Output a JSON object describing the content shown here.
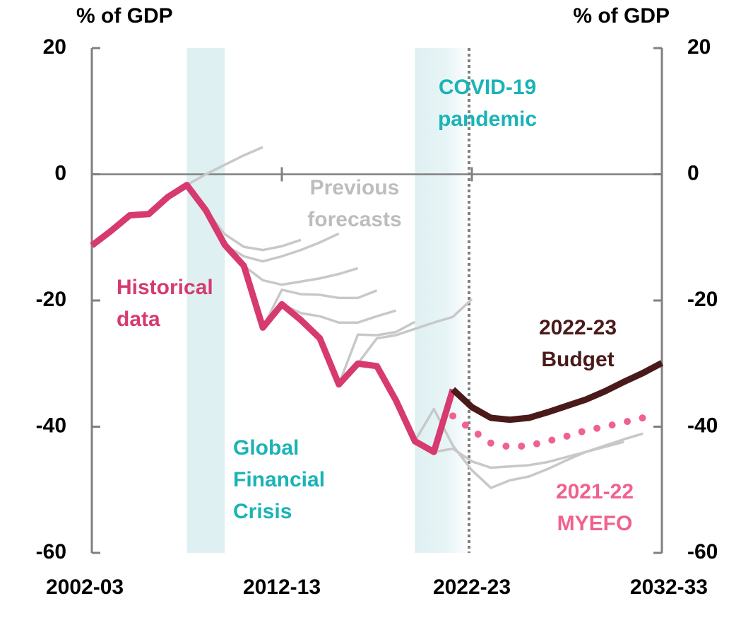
{
  "chart_data": {
    "type": "line",
    "y_label": "% of GDP",
    "y2_label": "% of GDP",
    "categories": [
      "2002-03",
      null,
      null,
      null,
      null,
      null,
      null,
      null,
      null,
      null,
      "2012-13",
      null,
      null,
      null,
      null,
      null,
      null,
      null,
      null,
      null,
      "2022-23",
      null,
      null,
      null,
      null,
      null,
      null,
      null,
      null,
      null,
      "2032-33"
    ],
    "ylim": [
      -60,
      20
    ],
    "yticks": [
      -60,
      -40,
      -20,
      0,
      20
    ],
    "y2lim": [
      -60,
      20
    ],
    "y2ticks": [
      -60,
      -40,
      -20,
      0,
      20
    ],
    "highlight_spans": [
      {
        "start": 5,
        "end": 7,
        "color": "#dff0f2"
      },
      {
        "start": 17,
        "end": 19.9,
        "color": "#dff0f2"
      }
    ],
    "forecast_start": 20,
    "series": [
      {
        "color": "#c8c8c8",
        "values": [
          null,
          null,
          null,
          null,
          null,
          -1.7,
          0,
          1.5,
          3,
          4.3,
          null,
          null,
          null,
          null,
          null,
          null,
          null,
          null,
          null,
          null,
          null,
          null,
          null,
          null,
          null,
          null,
          null,
          null,
          null,
          null,
          null
        ]
      },
      {
        "color": "#c8c8c8",
        "values": [
          null,
          null,
          null,
          null,
          null,
          null,
          -5.7,
          -9.5,
          -11.5,
          -12,
          -11.4,
          -10.4,
          null,
          null,
          null,
          null,
          null,
          null,
          null,
          null,
          null,
          null,
          null,
          null,
          null,
          null,
          null,
          null,
          null,
          null,
          null
        ]
      },
      {
        "color": "#c8c8c8",
        "values": [
          null,
          null,
          null,
          null,
          null,
          null,
          null,
          -11.2,
          -13,
          -13.8,
          -13,
          -12,
          -10.8,
          -9.4,
          null,
          null,
          null,
          null,
          null,
          null,
          null,
          null,
          null,
          null,
          null,
          null,
          null,
          null,
          null,
          null,
          null
        ]
      },
      {
        "color": "#c8c8c8",
        "values": [
          null,
          null,
          null,
          null,
          null,
          null,
          null,
          null,
          -14.5,
          -16.8,
          -17.5,
          -17,
          -16.5,
          -15.8,
          -14.9,
          null,
          null,
          null,
          null,
          null,
          null,
          null,
          null,
          null,
          null,
          null,
          null,
          null,
          null,
          null,
          null
        ]
      },
      {
        "color": "#c8c8c8",
        "values": [
          null,
          null,
          null,
          null,
          null,
          null,
          null,
          null,
          null,
          -24.3,
          -18.3,
          -19,
          -19.1,
          -19.6,
          -19.6,
          -18.4,
          null,
          null,
          null,
          null,
          null,
          null,
          null,
          null,
          null,
          null,
          null,
          null,
          null,
          null,
          null
        ]
      },
      {
        "color": "#c8c8c8",
        "values": [
          null,
          null,
          null,
          null,
          null,
          null,
          null,
          null,
          null,
          null,
          -20.6,
          -22,
          -22.5,
          -23.5,
          -23.5,
          -22.5,
          -21.6,
          null,
          null,
          null,
          null,
          null,
          null,
          null,
          null,
          null,
          null,
          null,
          null,
          null,
          null
        ]
      },
      {
        "color": "#c8c8c8",
        "values": [
          null,
          null,
          null,
          null,
          null,
          null,
          null,
          null,
          null,
          null,
          null,
          null,
          null,
          -33.3,
          -25.4,
          -25.5,
          -25,
          -23.4,
          null,
          null,
          null,
          null,
          null,
          null,
          null,
          null,
          null,
          null,
          null,
          null,
          null
        ]
      },
      {
        "color": "#c8c8c8",
        "values": [
          null,
          null,
          null,
          null,
          null,
          null,
          null,
          null,
          null,
          null,
          null,
          null,
          null,
          null,
          -30,
          -26,
          -25.5,
          -24.5,
          -23.5,
          -22.6,
          -19.8,
          null,
          null,
          null,
          null,
          null,
          null,
          null,
          null,
          null,
          null
        ]
      },
      {
        "color": "#c8c8c8",
        "values": [
          null,
          null,
          null,
          null,
          null,
          null,
          null,
          null,
          null,
          null,
          null,
          null,
          null,
          null,
          null,
          null,
          null,
          -42.3,
          -37.2,
          -43,
          -46.9,
          -49.7,
          -48.5,
          -47.9,
          -46.7,
          -45.3,
          -44,
          -43.2,
          -42.4,
          null,
          null
        ]
      },
      {
        "color": "#c8c8c8",
        "values": [
          null,
          null,
          null,
          null,
          null,
          null,
          null,
          null,
          null,
          null,
          null,
          null,
          null,
          null,
          null,
          null,
          null,
          null,
          -44,
          -43.5,
          -45.5,
          -46.5,
          -46.3,
          -46.1,
          -45.6,
          -44.8,
          -44,
          -43,
          -42,
          -41.1,
          null
        ]
      },
      {
        "color": "#d63a6f",
        "values": [
          -11.3,
          -9,
          -6.5,
          -6.3,
          -3.6,
          -1.7,
          -5.7,
          -11.2,
          -14.5,
          -24.3,
          -20.6,
          -23.1,
          -26,
          -33.3,
          -30,
          -30.4,
          -35.8,
          -42.3,
          -44,
          -34.1,
          null,
          null,
          null,
          null,
          null,
          null,
          null,
          null,
          null,
          null,
          null
        ]
      },
      {
        "color": "#4a1a1a",
        "values": [
          null,
          null,
          null,
          null,
          null,
          null,
          null,
          null,
          null,
          null,
          null,
          null,
          null,
          null,
          null,
          null,
          null,
          null,
          null,
          -34.1,
          -36.9,
          -38.6,
          -38.9,
          -38.6,
          -37.7,
          -36.7,
          -35.7,
          -34.4,
          -32.9,
          -31.5,
          -29.9
        ]
      },
      {
        "color": "#f0628e",
        "dotted": true,
        "values": [
          null,
          null,
          null,
          null,
          null,
          null,
          null,
          null,
          null,
          null,
          null,
          null,
          null,
          null,
          null,
          null,
          null,
          null,
          null,
          -38.3,
          -40.5,
          -42.6,
          -43.2,
          -43,
          -42.3,
          -41.5,
          -40.6,
          -40,
          -39.3,
          -38.6,
          null
        ]
      }
    ],
    "annotations": [
      {
        "lines": [
          "Historical",
          "data"
        ],
        "color": "#d63a6f"
      },
      {
        "lines": [
          "Previous",
          "forecasts"
        ],
        "color": "#bdbdbd"
      },
      {
        "lines": [
          "COVID-19",
          "pandemic"
        ],
        "color": "#1ab3b8"
      },
      {
        "lines": [
          "Global",
          "Financial",
          "Crisis"
        ],
        "color": "#1ab3b8"
      },
      {
        "lines": [
          "2022-23",
          "Budget"
        ],
        "color": "#4a1a1a"
      },
      {
        "lines": [
          "2021-22",
          "MYEFO"
        ],
        "color": "#f0628e"
      }
    ]
  }
}
